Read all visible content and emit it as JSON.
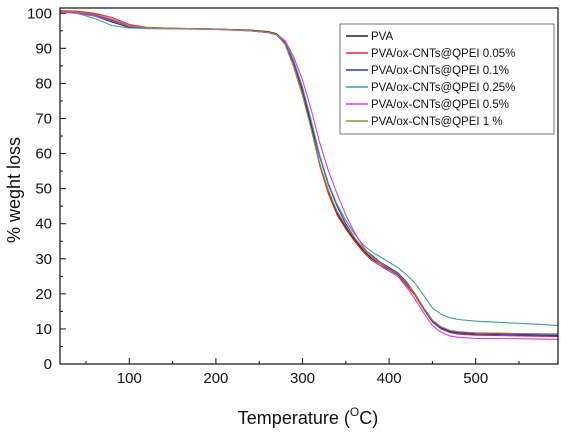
{
  "chart_data": {
    "type": "line",
    "xlabel": "Temperature (°C)",
    "xlabel_main": "Temperature (",
    "xlabel_unit_sup": "O",
    "xlabel_unit_letter": "C",
    "xlabel_close": ")",
    "ylabel": "% weght loss",
    "xlim": [
      20,
      595
    ],
    "ylim": [
      0,
      101.5
    ],
    "xticks": [
      100,
      200,
      300,
      400,
      500
    ],
    "yticks": [
      0,
      10,
      20,
      30,
      40,
      50,
      60,
      70,
      80,
      90,
      100
    ],
    "legend_position": "top-right",
    "series": [
      {
        "name": "PVA",
        "color": "#222222",
        "x": [
          20,
          40,
          60,
          80,
          100,
          120,
          150,
          200,
          240,
          260,
          270,
          280,
          290,
          300,
          310,
          320,
          330,
          340,
          350,
          360,
          370,
          380,
          390,
          400,
          410,
          420,
          430,
          440,
          450,
          460,
          470,
          480,
          500,
          550,
          595
        ],
        "y": [
          100.5,
          100.2,
          99.2,
          97.5,
          96.0,
          95.7,
          95.6,
          95.5,
          95.2,
          94.8,
          94.2,
          92.0,
          86.0,
          78.0,
          68.0,
          57.0,
          49.0,
          43.0,
          39.0,
          35.5,
          32.5,
          30.0,
          28.5,
          27.0,
          25.5,
          23.0,
          20.0,
          16.0,
          12.5,
          10.5,
          9.5,
          9.0,
          8.8,
          8.6,
          8.5
        ]
      },
      {
        "name": "PVA/ox-CNTs@QPEI 0.05%",
        "color": "#e8232a",
        "x": [
          20,
          40,
          60,
          80,
          100,
          120,
          150,
          200,
          240,
          260,
          270,
          280,
          290,
          300,
          310,
          320,
          330,
          340,
          350,
          360,
          370,
          380,
          390,
          400,
          410,
          420,
          430,
          440,
          450,
          460,
          470,
          480,
          500,
          550,
          595
        ],
        "y": [
          100.8,
          100.6,
          100.0,
          98.8,
          96.8,
          96.0,
          95.7,
          95.5,
          95.0,
          94.5,
          93.8,
          91.5,
          85.5,
          77.0,
          67.0,
          56.5,
          48.5,
          42.5,
          38.5,
          35.0,
          32.0,
          29.5,
          28.0,
          26.5,
          25.0,
          22.5,
          19.5,
          15.5,
          12.0,
          10.0,
          9.0,
          8.5,
          8.2,
          8.0,
          7.8
        ]
      },
      {
        "name": "PVA/ox-CNTs@QPEI 0.1%",
        "color": "#2e2ee0",
        "x": [
          20,
          40,
          60,
          80,
          100,
          120,
          150,
          200,
          240,
          260,
          270,
          280,
          290,
          300,
          310,
          320,
          330,
          340,
          350,
          360,
          370,
          380,
          390,
          400,
          410,
          420,
          430,
          440,
          450,
          460,
          470,
          480,
          500,
          550,
          595
        ],
        "y": [
          100.6,
          100.3,
          99.5,
          98.0,
          96.3,
          95.8,
          95.7,
          95.5,
          95.1,
          94.6,
          94.0,
          91.8,
          86.0,
          78.5,
          69.0,
          59.0,
          51.0,
          45.0,
          40.0,
          36.0,
          33.0,
          31.0,
          29.0,
          27.5,
          26.0,
          23.5,
          20.0,
          15.8,
          12.2,
          10.2,
          9.2,
          8.8,
          8.5,
          8.3,
          8.1
        ]
      },
      {
        "name": "PVA/ox-CNTs@QPEI 0.25%",
        "color": "#3f9e9e",
        "x": [
          20,
          40,
          60,
          80,
          100,
          120,
          150,
          200,
          240,
          260,
          270,
          280,
          290,
          300,
          310,
          320,
          330,
          340,
          350,
          360,
          370,
          380,
          390,
          400,
          410,
          420,
          430,
          440,
          450,
          460,
          470,
          480,
          500,
          550,
          595
        ],
        "y": [
          100.4,
          100.0,
          98.5,
          96.5,
          95.8,
          95.6,
          95.6,
          95.4,
          95.0,
          94.5,
          93.9,
          92.0,
          86.5,
          79.0,
          69.5,
          59.5,
          51.5,
          45.5,
          41.0,
          37.0,
          34.0,
          32.0,
          30.5,
          29.0,
          27.5,
          25.5,
          23.0,
          19.5,
          16.0,
          14.2,
          13.2,
          12.7,
          12.2,
          11.6,
          11.0
        ]
      },
      {
        "name": "PVA/ox-CNTs@QPEI 0.5%",
        "color": "#e03ae0",
        "x": [
          20,
          40,
          60,
          80,
          100,
          120,
          150,
          200,
          240,
          260,
          270,
          280,
          290,
          300,
          310,
          320,
          330,
          340,
          350,
          360,
          370,
          380,
          390,
          400,
          410,
          420,
          430,
          440,
          450,
          460,
          470,
          480,
          500,
          550,
          595
        ],
        "y": [
          100.3,
          100.0,
          99.2,
          97.8,
          96.2,
          95.8,
          95.6,
          95.4,
          95.0,
          94.5,
          93.9,
          92.2,
          87.5,
          81.0,
          72.5,
          63.0,
          55.0,
          48.5,
          42.5,
          37.5,
          33.5,
          30.5,
          28.5,
          26.5,
          25.0,
          22.0,
          18.5,
          14.5,
          11.0,
          9.0,
          8.0,
          7.6,
          7.3,
          7.2,
          7.0
        ]
      },
      {
        "name": "PVA/ox-CNTs@QPEI 1 %",
        "color": "#8f8f3a",
        "x": [
          20,
          40,
          60,
          80,
          100,
          120,
          150,
          200,
          240,
          260,
          270,
          280,
          290,
          300,
          310,
          320,
          330,
          340,
          350,
          360,
          370,
          380,
          390,
          400,
          410,
          420,
          430,
          440,
          450,
          460,
          470,
          480,
          500,
          550,
          595
        ],
        "y": [
          100.7,
          100.4,
          99.7,
          98.3,
          96.5,
          95.9,
          95.7,
          95.5,
          95.1,
          94.6,
          94.0,
          91.0,
          84.5,
          76.5,
          67.0,
          57.0,
          49.5,
          43.5,
          39.5,
          36.0,
          33.0,
          30.5,
          28.8,
          27.2,
          25.7,
          23.2,
          20.0,
          16.0,
          12.5,
          10.6,
          9.6,
          9.2,
          8.9,
          8.7,
          8.6
        ]
      }
    ]
  }
}
